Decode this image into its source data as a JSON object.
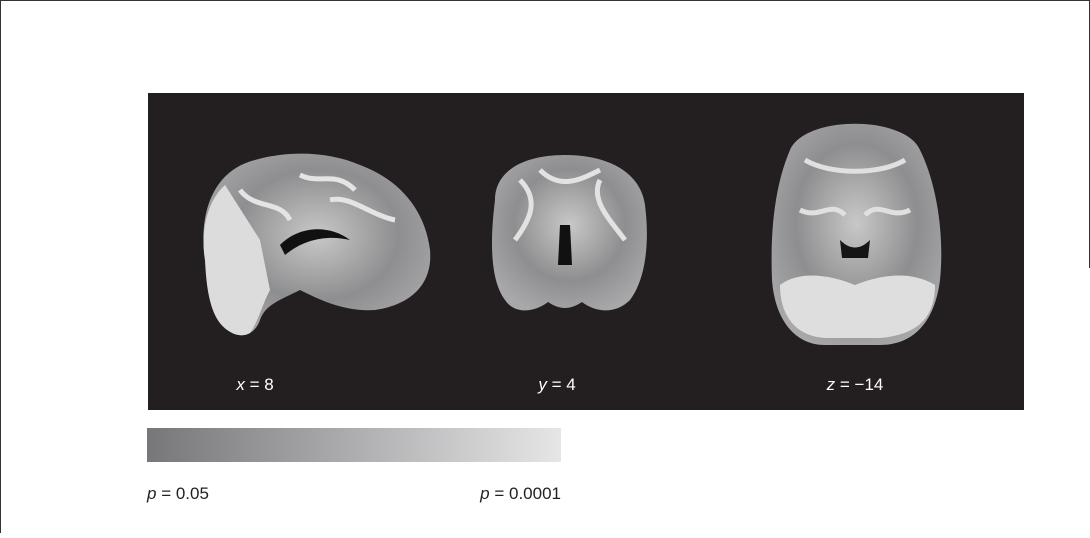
{
  "slices": [
    {
      "axis": "x",
      "coord": "= 8"
    },
    {
      "axis": "y",
      "coord": "= 4"
    },
    {
      "axis": "z",
      "coord": "= −14"
    }
  ],
  "colorbar": {
    "low": {
      "symbol": "p",
      "text": "= 0.05"
    },
    "high": {
      "symbol": "p",
      "text": "= 0.0001"
    }
  }
}
